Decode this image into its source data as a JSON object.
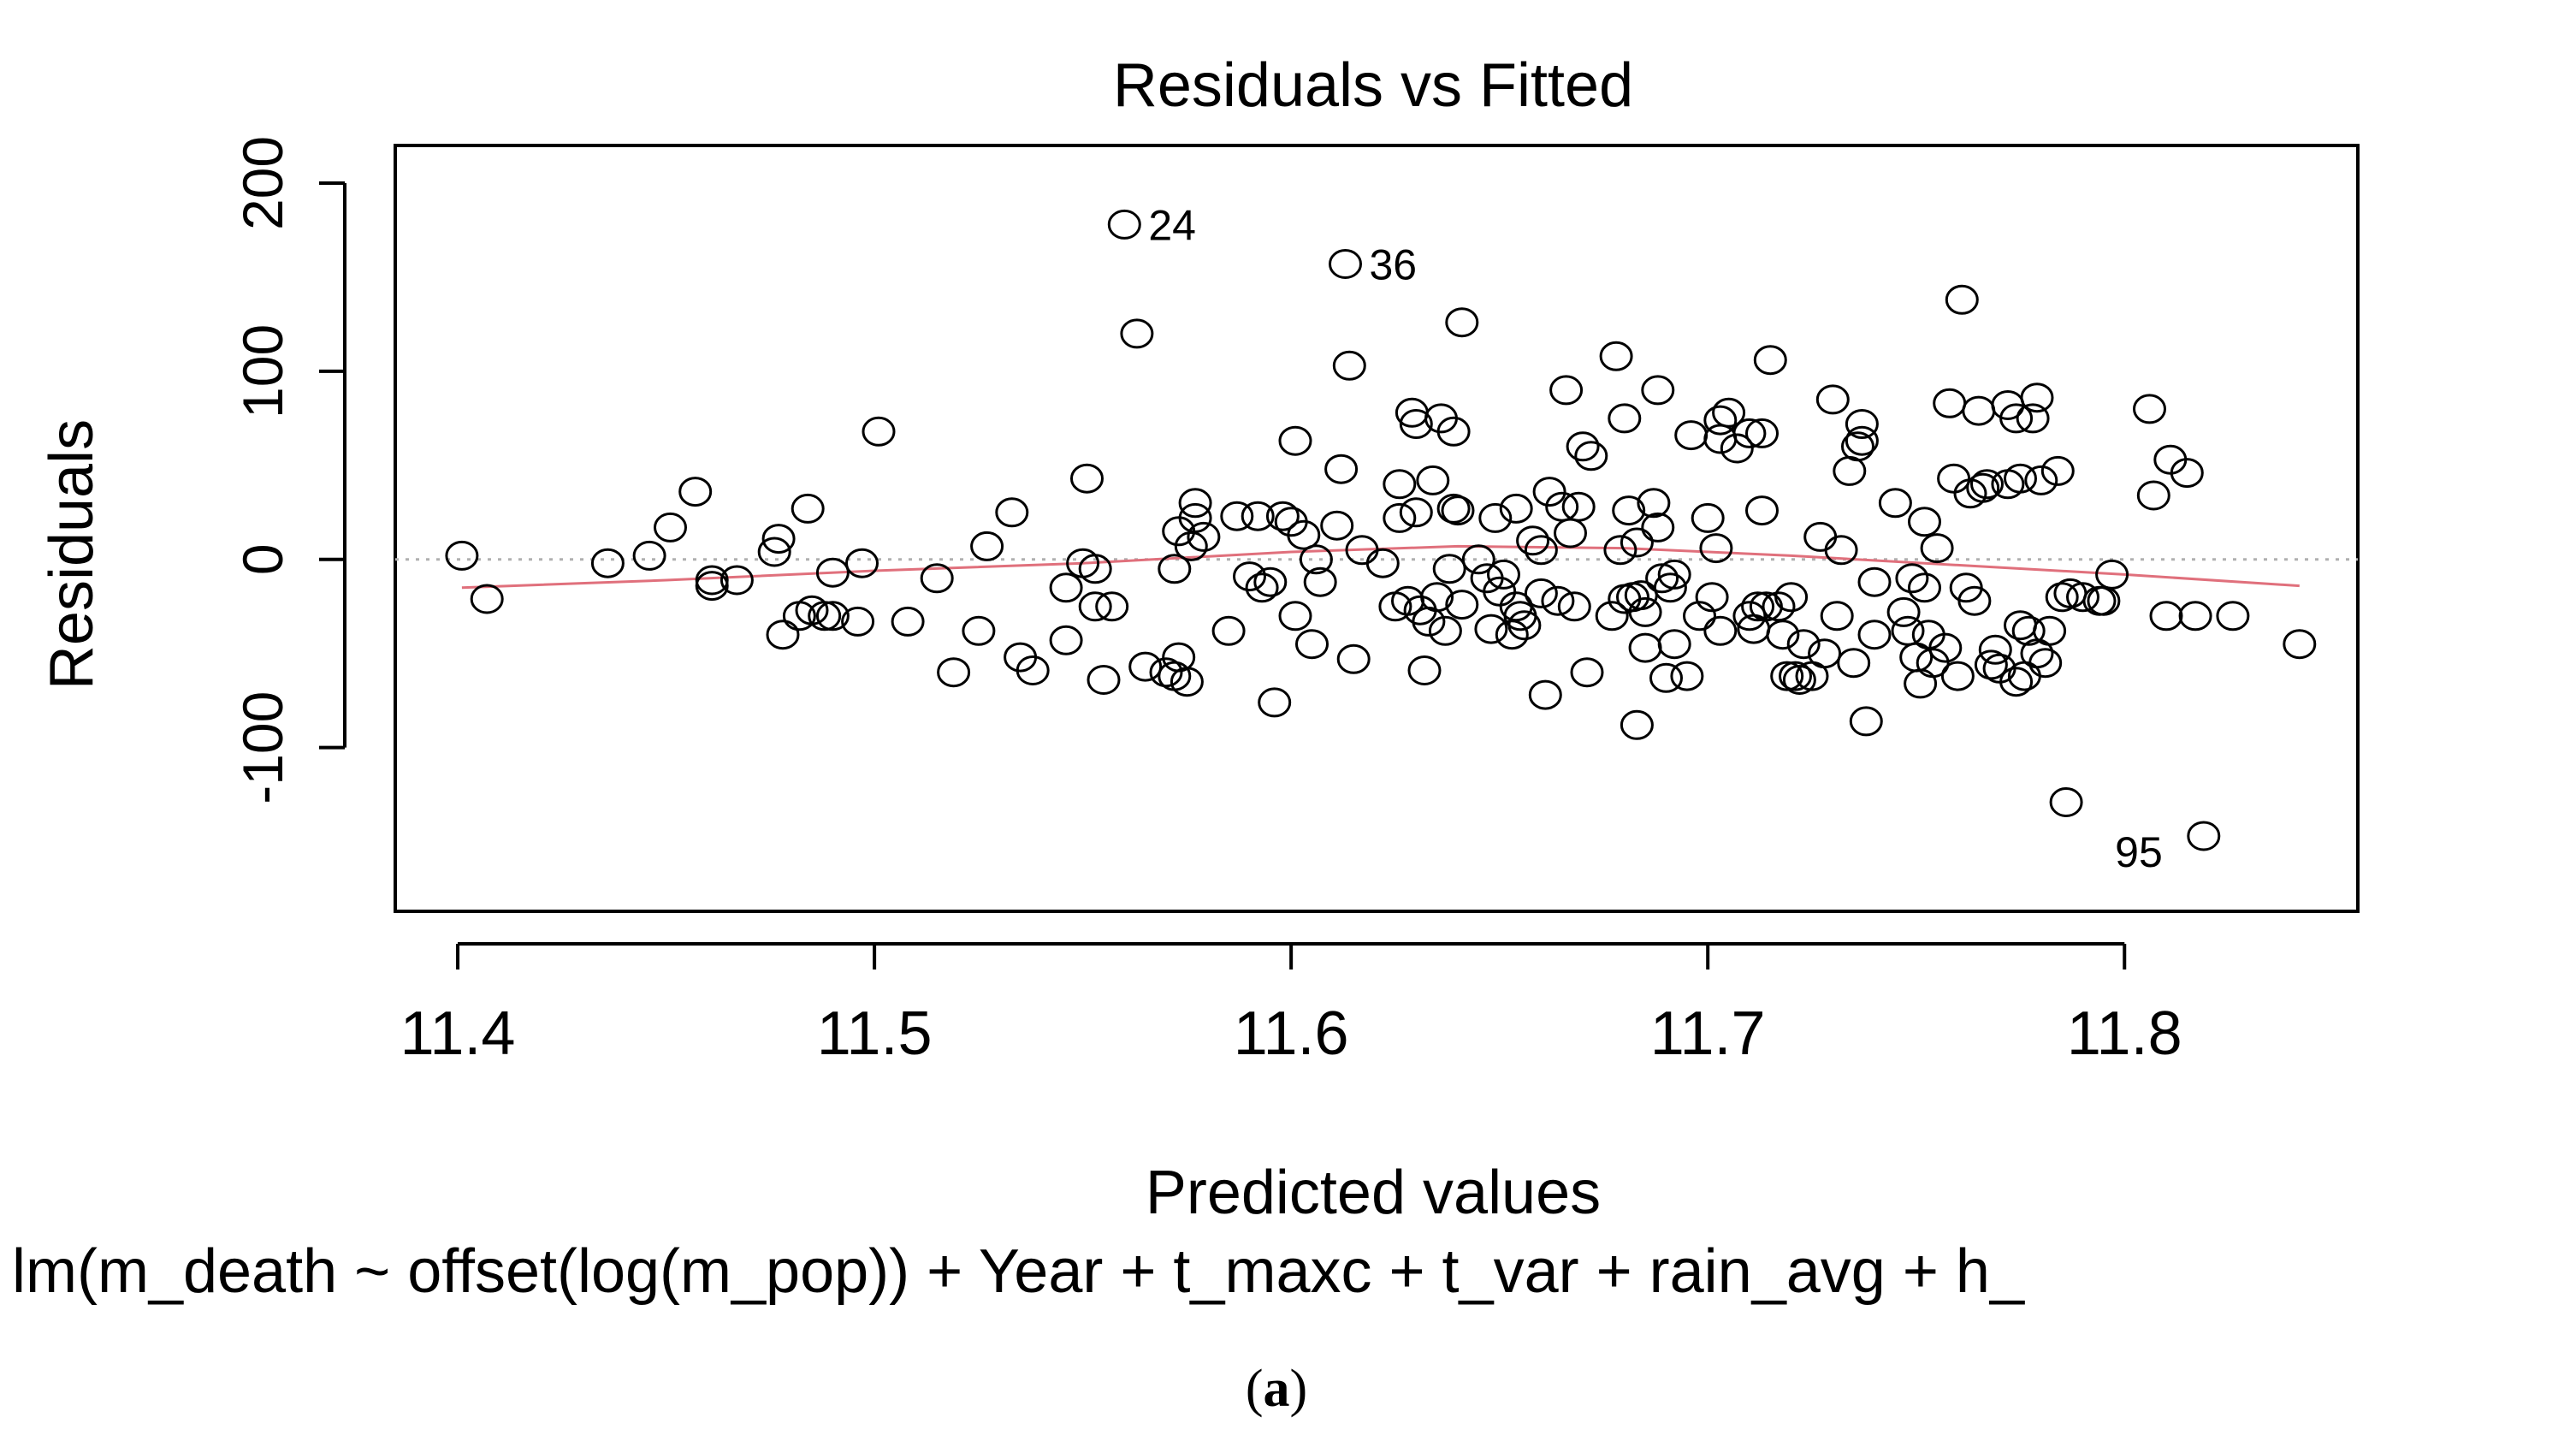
{
  "chart_data": {
    "type": "scatter",
    "title": "Residuals vs Fitted",
    "xlabel": "Predicted values",
    "ylabel": "Residuals",
    "subtitle": "lm(m_death ~ offset(log(m_pop)) + Year + t_maxc + t_var + rain_avg + h_",
    "xlim": [
      11.385,
      11.856
    ],
    "ylim": [
      -187,
      220
    ],
    "xticks": [
      11.4,
      11.5,
      11.6,
      11.7,
      11.8
    ],
    "xtick_labels": [
      "11.4",
      "11.5",
      "11.6",
      "11.7",
      "11.8"
    ],
    "yticks": [
      -100,
      0,
      100,
      200
    ],
    "ytick_labels": [
      "-100",
      "0",
      "100",
      "200"
    ],
    "zero_line": true,
    "colors": {
      "points": "#000000",
      "smooth": "#e0707c",
      "zero_line": "#b0b0b0"
    },
    "annotations": [
      {
        "label": "24",
        "x": 11.56,
        "y": 178
      },
      {
        "label": "36",
        "x": 11.613,
        "y": 157
      },
      {
        "label": "95",
        "x": 11.819,
        "y": -147
      }
    ],
    "smooth_line": {
      "x": [
        11.401,
        11.45,
        11.5,
        11.55,
        11.6,
        11.64,
        11.68,
        11.72,
        11.76,
        11.8,
        11.842
      ],
      "y": [
        -15,
        -11,
        -6,
        -2,
        4,
        7,
        6,
        2,
        -3,
        -8,
        -14
      ]
    },
    "points": [
      [
        11.401,
        2
      ],
      [
        11.407,
        -21
      ],
      [
        11.436,
        -2
      ],
      [
        11.446,
        2
      ],
      [
        11.451,
        17
      ],
      [
        11.457,
        36
      ],
      [
        11.461,
        -11
      ],
      [
        11.461,
        -14
      ],
      [
        11.467,
        -11
      ],
      [
        11.476,
        4
      ],
      [
        11.477,
        11
      ],
      [
        11.478,
        -40
      ],
      [
        11.482,
        -30
      ],
      [
        11.484,
        27
      ],
      [
        11.485,
        -27
      ],
      [
        11.488,
        -30
      ],
      [
        11.49,
        -30
      ],
      [
        11.49,
        -7
      ],
      [
        11.496,
        -33
      ],
      [
        11.497,
        -2
      ],
      [
        11.501,
        68
      ],
      [
        11.508,
        -33
      ],
      [
        11.515,
        -10
      ],
      [
        11.519,
        -60
      ],
      [
        11.525,
        -38
      ],
      [
        11.527,
        7
      ],
      [
        11.533,
        25
      ],
      [
        11.535,
        -52
      ],
      [
        11.538,
        -59
      ],
      [
        11.546,
        -43
      ],
      [
        11.546,
        -15
      ],
      [
        11.55,
        -2
      ],
      [
        11.551,
        43
      ],
      [
        11.553,
        -5
      ],
      [
        11.553,
        -25
      ],
      [
        11.555,
        -64
      ],
      [
        11.557,
        -25
      ],
      [
        11.56,
        178
      ],
      [
        11.563,
        120
      ],
      [
        11.565,
        -57
      ],
      [
        11.57,
        -60
      ],
      [
        11.572,
        -62
      ],
      [
        11.572,
        -5
      ],
      [
        11.573,
        15
      ],
      [
        11.573,
        -52
      ],
      [
        11.575,
        -65
      ],
      [
        11.576,
        7
      ],
      [
        11.577,
        22
      ],
      [
        11.577,
        30
      ],
      [
        11.579,
        12
      ],
      [
        11.585,
        -38
      ],
      [
        11.587,
        23
      ],
      [
        11.59,
        -9
      ],
      [
        11.592,
        23
      ],
      [
        11.593,
        -15
      ],
      [
        11.595,
        -12
      ],
      [
        11.596,
        -76
      ],
      [
        11.598,
        23
      ],
      [
        11.6,
        20
      ],
      [
        11.601,
        63
      ],
      [
        11.601,
        -30
      ],
      [
        11.603,
        13
      ],
      [
        11.605,
        -45
      ],
      [
        11.606,
        0
      ],
      [
        11.607,
        -12
      ],
      [
        11.611,
        18
      ],
      [
        11.612,
        48
      ],
      [
        11.613,
        157
      ],
      [
        11.614,
        103
      ],
      [
        11.615,
        -53
      ],
      [
        11.617,
        5
      ],
      [
        11.622,
        -2
      ],
      [
        11.625,
        -25
      ],
      [
        11.626,
        40
      ],
      [
        11.626,
        22
      ],
      [
        11.628,
        -22
      ],
      [
        11.629,
        78
      ],
      [
        11.63,
        72
      ],
      [
        11.63,
        25
      ],
      [
        11.631,
        -27
      ],
      [
        11.632,
        -59
      ],
      [
        11.633,
        -33
      ],
      [
        11.634,
        42
      ],
      [
        11.635,
        -20
      ],
      [
        11.636,
        75
      ],
      [
        11.637,
        -38
      ],
      [
        11.638,
        -5
      ],
      [
        11.639,
        27
      ],
      [
        11.639,
        68
      ],
      [
        11.64,
        26
      ],
      [
        11.641,
        -24
      ],
      [
        11.641,
        126
      ],
      [
        11.645,
        0
      ],
      [
        11.647,
        -10
      ],
      [
        11.648,
        -37
      ],
      [
        11.649,
        22
      ],
      [
        11.65,
        -17
      ],
      [
        11.651,
        -8
      ],
      [
        11.653,
        -40
      ],
      [
        11.654,
        -25
      ],
      [
        11.654,
        27
      ],
      [
        11.655,
        -30
      ],
      [
        11.656,
        -35
      ],
      [
        11.658,
        10
      ],
      [
        11.66,
        -18
      ],
      [
        11.66,
        5
      ],
      [
        11.661,
        -72
      ],
      [
        11.662,
        36
      ],
      [
        11.664,
        -22
      ],
      [
        11.665,
        28
      ],
      [
        11.666,
        90
      ],
      [
        11.667,
        14
      ],
      [
        11.668,
        -25
      ],
      [
        11.669,
        28
      ],
      [
        11.67,
        60
      ],
      [
        11.671,
        -60
      ],
      [
        11.672,
        55
      ],
      [
        11.677,
        -30
      ],
      [
        11.678,
        108
      ],
      [
        11.679,
        5
      ],
      [
        11.68,
        75
      ],
      [
        11.68,
        -21
      ],
      [
        11.681,
        26
      ],
      [
        11.682,
        -20
      ],
      [
        11.683,
        9
      ],
      [
        11.683,
        -88
      ],
      [
        11.684,
        -19
      ],
      [
        11.685,
        -47
      ],
      [
        11.685,
        -28
      ],
      [
        11.687,
        30
      ],
      [
        11.688,
        90
      ],
      [
        11.688,
        17
      ],
      [
        11.689,
        -10
      ],
      [
        11.69,
        -63
      ],
      [
        11.691,
        -15
      ],
      [
        11.692,
        -45
      ],
      [
        11.692,
        -8
      ],
      [
        11.695,
        -62
      ],
      [
        11.696,
        66
      ],
      [
        11.698,
        -30
      ],
      [
        11.7,
        22
      ],
      [
        11.701,
        -20
      ],
      [
        11.702,
        6
      ],
      [
        11.703,
        -38
      ],
      [
        11.703,
        74
      ],
      [
        11.703,
        64
      ],
      [
        11.705,
        78
      ],
      [
        11.707,
        59
      ],
      [
        11.71,
        67
      ],
      [
        11.71,
        -30
      ],
      [
        11.711,
        -37
      ],
      [
        11.712,
        -25
      ],
      [
        11.713,
        26
      ],
      [
        11.713,
        67
      ],
      [
        11.714,
        -25
      ],
      [
        11.715,
        106
      ],
      [
        11.717,
        -25
      ],
      [
        11.718,
        -40
      ],
      [
        11.719,
        -62
      ],
      [
        11.72,
        -20
      ],
      [
        11.721,
        -62
      ],
      [
        11.722,
        -64
      ],
      [
        11.723,
        -45
      ],
      [
        11.725,
        -62
      ],
      [
        11.727,
        12
      ],
      [
        11.728,
        -50
      ],
      [
        11.73,
        85
      ],
      [
        11.731,
        -30
      ],
      [
        11.732,
        5
      ],
      [
        11.734,
        47
      ],
      [
        11.735,
        -55
      ],
      [
        11.736,
        60
      ],
      [
        11.737,
        63
      ],
      [
        11.737,
        72
      ],
      [
        11.738,
        -86
      ],
      [
        11.74,
        -12
      ],
      [
        11.74,
        -40
      ],
      [
        11.745,
        30
      ],
      [
        11.747,
        -28
      ],
      [
        11.748,
        -38
      ],
      [
        11.749,
        -10
      ],
      [
        11.75,
        -52
      ],
      [
        11.751,
        -66
      ],
      [
        11.752,
        -15
      ],
      [
        11.752,
        20
      ],
      [
        11.753,
        -40
      ],
      [
        11.754,
        -55
      ],
      [
        11.755,
        6
      ],
      [
        11.757,
        -47
      ],
      [
        11.758,
        83
      ],
      [
        11.759,
        43
      ],
      [
        11.76,
        -62
      ],
      [
        11.761,
        138
      ],
      [
        11.762,
        -15
      ],
      [
        11.763,
        35
      ],
      [
        11.764,
        -22
      ],
      [
        11.765,
        79
      ],
      [
        11.766,
        38
      ],
      [
        11.767,
        40
      ],
      [
        11.768,
        -56
      ],
      [
        11.769,
        -48
      ],
      [
        11.77,
        -58
      ],
      [
        11.772,
        40
      ],
      [
        11.772,
        82
      ],
      [
        11.774,
        -65
      ],
      [
        11.774,
        75
      ],
      [
        11.775,
        43
      ],
      [
        11.775,
        -35
      ],
      [
        11.776,
        -62
      ],
      [
        11.777,
        -38
      ],
      [
        11.778,
        75
      ],
      [
        11.779,
        86
      ],
      [
        11.779,
        -50
      ],
      [
        11.78,
        42
      ],
      [
        11.781,
        -55
      ],
      [
        11.782,
        -38
      ],
      [
        11.784,
        47
      ],
      [
        11.785,
        -20
      ],
      [
        11.786,
        -129
      ],
      [
        11.787,
        -18
      ],
      [
        11.79,
        -20
      ],
      [
        11.794,
        -22
      ],
      [
        11.795,
        -22
      ],
      [
        11.797,
        -8
      ],
      [
        11.806,
        80
      ],
      [
        11.807,
        34
      ],
      [
        11.81,
        -30
      ],
      [
        11.811,
        53
      ],
      [
        11.815,
        46
      ],
      [
        11.817,
        -30
      ],
      [
        11.819,
        -147
      ],
      [
        11.826,
        -30
      ],
      [
        11.842,
        -45
      ]
    ]
  },
  "caption": {
    "prefix": "(",
    "letter": "a",
    "suffix": ")"
  }
}
